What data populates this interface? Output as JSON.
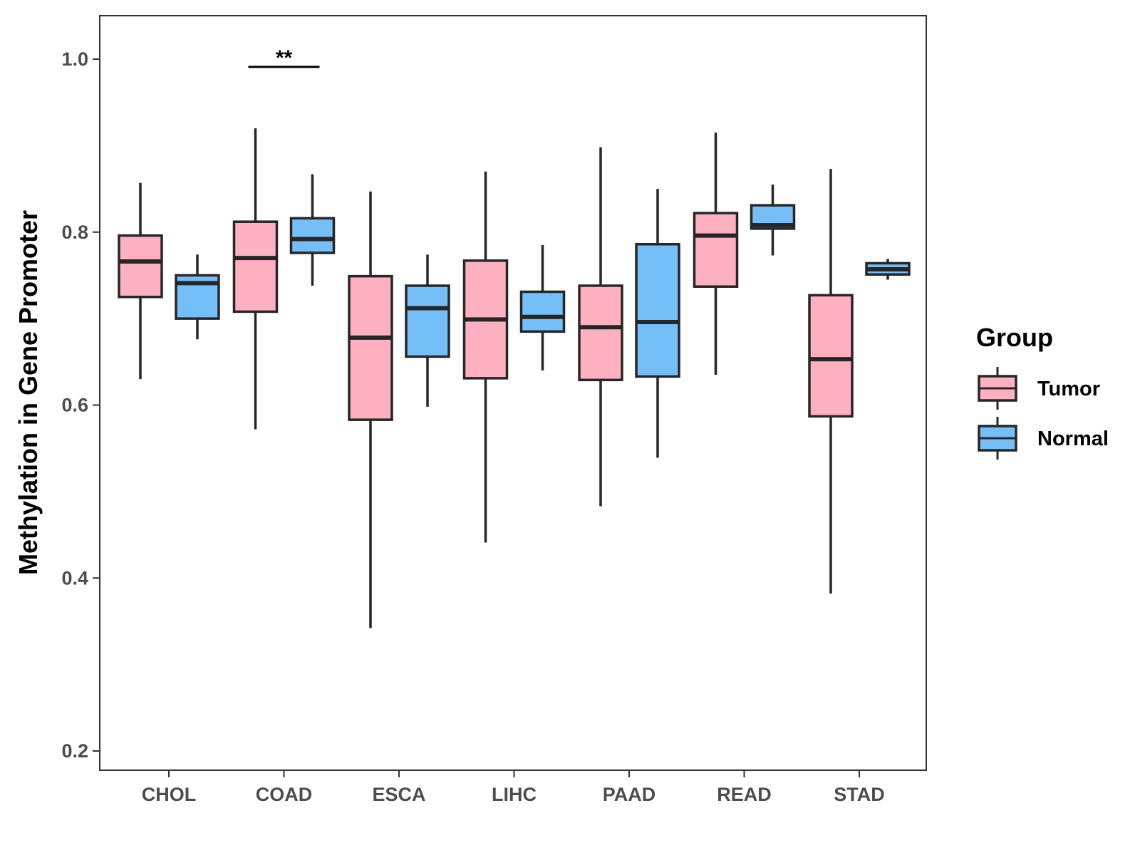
{
  "chart_data": {
    "type": "boxplot",
    "title": "",
    "xlabel": "",
    "ylabel": "Methylation in Gene Promoter",
    "ylim": [
      0.18,
      1.05
    ],
    "yticks": [
      0.2,
      0.4,
      0.6,
      0.8,
      1.0
    ],
    "ytick_labels": [
      "0.2",
      "0.4",
      "0.6",
      "0.8",
      "1.0"
    ],
    "categories": [
      "CHOL",
      "COAD",
      "ESCA",
      "LIHC",
      "PAAD",
      "READ",
      "STAD"
    ],
    "legend": {
      "title": "Group",
      "position": "right",
      "entries": [
        {
          "name": "Tumor",
          "color": "#ffb0c1"
        },
        {
          "name": "Normal",
          "color": "#75bff9"
        }
      ]
    },
    "series": [
      {
        "name": "Tumor",
        "color": "#ffb0c1",
        "boxes": [
          {
            "whisker_low": 0.63,
            "q1": 0.725,
            "median": 0.766,
            "q3": 0.796,
            "whisker_high": 0.857
          },
          {
            "whisker_low": 0.572,
            "q1": 0.708,
            "median": 0.77,
            "q3": 0.812,
            "whisker_high": 0.92
          },
          {
            "whisker_low": 0.342,
            "q1": 0.583,
            "median": 0.678,
            "q3": 0.749,
            "whisker_high": 0.847
          },
          {
            "whisker_low": 0.441,
            "q1": 0.631,
            "median": 0.699,
            "q3": 0.767,
            "whisker_high": 0.87
          },
          {
            "whisker_low": 0.483,
            "q1": 0.629,
            "median": 0.69,
            "q3": 0.738,
            "whisker_high": 0.898
          },
          {
            "whisker_low": 0.635,
            "q1": 0.737,
            "median": 0.796,
            "q3": 0.822,
            "whisker_high": 0.915
          },
          {
            "whisker_low": 0.382,
            "q1": 0.587,
            "median": 0.653,
            "q3": 0.727,
            "whisker_high": 0.873
          }
        ]
      },
      {
        "name": "Normal",
        "color": "#75bff9",
        "boxes": [
          {
            "whisker_low": 0.676,
            "q1": 0.7,
            "median": 0.741,
            "q3": 0.75,
            "whisker_high": 0.774
          },
          {
            "whisker_low": 0.738,
            "q1": 0.776,
            "median": 0.792,
            "q3": 0.816,
            "whisker_high": 0.867
          },
          {
            "whisker_low": 0.598,
            "q1": 0.656,
            "median": 0.712,
            "q3": 0.738,
            "whisker_high": 0.774
          },
          {
            "whisker_low": 0.64,
            "q1": 0.685,
            "median": 0.702,
            "q3": 0.731,
            "whisker_high": 0.785
          },
          {
            "whisker_low": 0.539,
            "q1": 0.633,
            "median": 0.696,
            "q3": 0.786,
            "whisker_high": 0.85
          },
          {
            "whisker_low": 0.773,
            "q1": 0.804,
            "median": 0.808,
            "q3": 0.831,
            "whisker_high": 0.855
          },
          {
            "whisker_low": 0.745,
            "q1": 0.751,
            "median": 0.757,
            "q3": 0.764,
            "whisker_high": 0.769
          }
        ]
      }
    ],
    "annotations": [
      {
        "category": "COAD",
        "text": "**",
        "y": 0.991
      }
    ]
  }
}
